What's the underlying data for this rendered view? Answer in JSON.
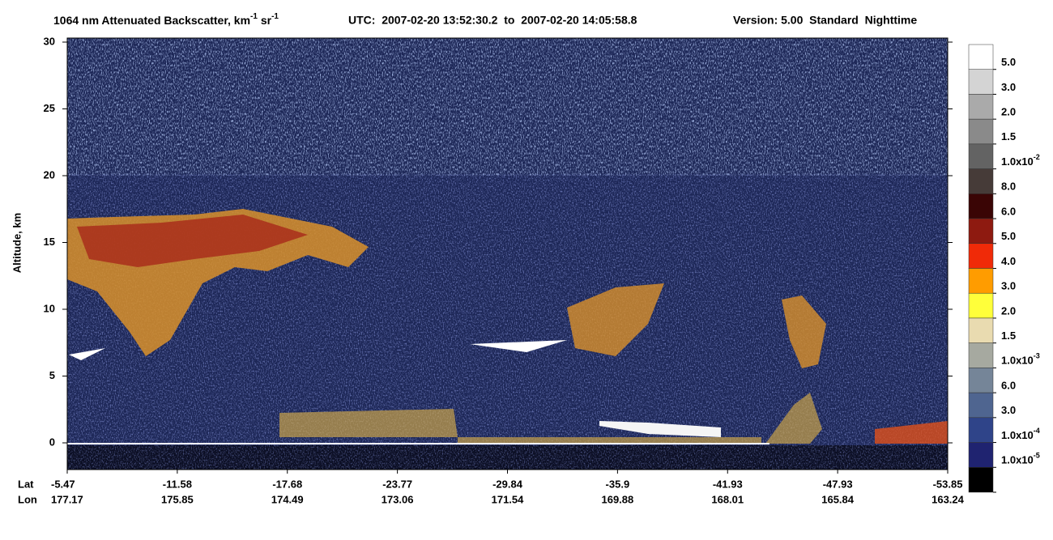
{
  "chart_data": {
    "type": "curtain",
    "title": [
      {
        "text": "1064 nm Attenuated Backscatter, km"
      },
      {
        "text": "-1",
        "sup": true
      },
      {
        "text": " sr"
      },
      {
        "text": "-1",
        "sup": true
      }
    ],
    "time_range": "UTC:  2007-02-20 13:52:30.2  to  2007-02-20 14:05:58.8",
    "version": "Version: 5.00  Standard  Nighttime",
    "y_label": "Altitude, km",
    "ylim": [
      -2,
      30
    ],
    "yticks": [
      0,
      5,
      10,
      15,
      20,
      25,
      30
    ],
    "x_rows": [
      "Lat",
      "Lon"
    ],
    "lat": [
      -5.47,
      -11.58,
      -17.68,
      -23.77,
      -29.84,
      -35.9,
      -41.93,
      -47.93,
      -53.85
    ],
    "lon": [
      177.17,
      175.85,
      174.49,
      173.06,
      171.54,
      169.88,
      168.01,
      165.84,
      163.24
    ],
    "colorbar": [
      {
        "color": "#ffffff",
        "label": "5.0"
      },
      {
        "color": "#d4d4d4",
        "label": "3.0"
      },
      {
        "color": "#aaaaaa",
        "label": "2.0"
      },
      {
        "color": "#8a8a8a",
        "label": "1.5"
      },
      {
        "color": "#636363",
        "label": "1.0x10",
        "label_sup": "-2"
      },
      {
        "color": "#463b38",
        "label": "8.0"
      },
      {
        "color": "#3a0505",
        "label": "6.0"
      },
      {
        "color": "#8e1a10",
        "label": "5.0"
      },
      {
        "color": "#f02a08",
        "label": "4.0"
      },
      {
        "color": "#ff9c00",
        "label": "3.0"
      },
      {
        "color": "#ffff3a",
        "label": "2.0"
      },
      {
        "color": "#e9dbb0",
        "label": "1.5"
      },
      {
        "color": "#a6a9a0",
        "label": "1.0x10",
        "label_sup": "-3"
      },
      {
        "color": "#758598",
        "label": "6.0"
      },
      {
        "color": "#4f6590",
        "label": "3.0"
      },
      {
        "color": "#2f4489",
        "label": "1.0x10",
        "label_sup": "-4"
      },
      {
        "color": "#1f2370",
        "label": "1.0x10",
        "label_sup": "-5"
      },
      {
        "color": "#000000"
      }
    ]
  }
}
